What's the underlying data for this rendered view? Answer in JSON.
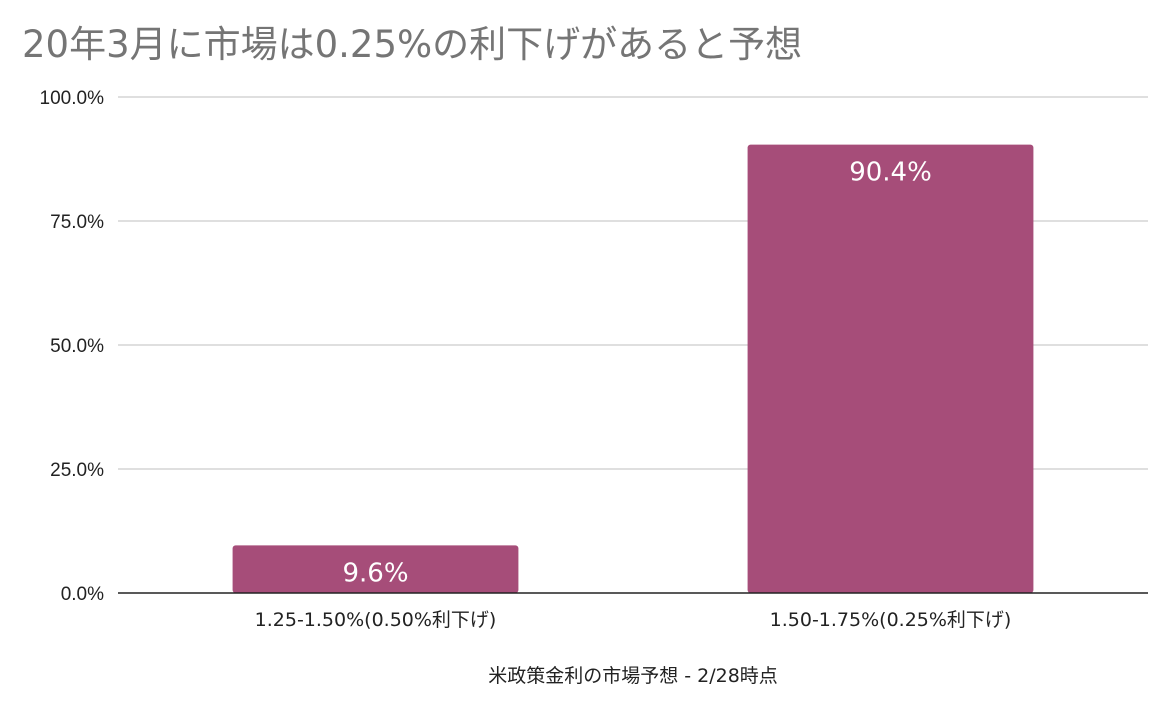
{
  "chart_data": {
    "type": "bar",
    "title": "20年3月に市場は0.25%の利下げがあると予想",
    "xlabel": "米政策金利の市場予想 - 2/28時点",
    "ylabel": "",
    "categories": [
      "1.25-1.50%(0.50%利下げ)",
      "1.50-1.75%(0.25%利下げ)"
    ],
    "values": [
      9.6,
      90.4
    ],
    "data_labels": [
      "9.6%",
      "90.4%"
    ],
    "ylim": [
      0,
      100
    ],
    "yticks": [
      0,
      25,
      50,
      75,
      100
    ],
    "ytick_labels": [
      "0.0%",
      "25.0%",
      "50.0%",
      "75.0%",
      "100.0%"
    ],
    "grid": true,
    "legend": "none",
    "colors": {
      "bar": "#a64d79",
      "grid": "#cccccc",
      "axis": "#222222",
      "title": "#757575"
    }
  }
}
